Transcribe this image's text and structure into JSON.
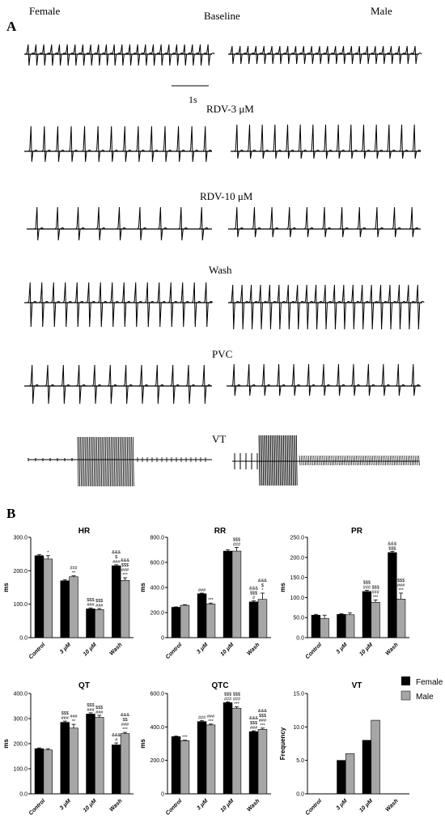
{
  "panel_a": {
    "label": "A",
    "female_label": "Female",
    "male_label": "Male",
    "scale_label": "1s",
    "rows": [
      {
        "label": "Baseline"
      },
      {
        "label": "RDV-3 μM"
      },
      {
        "label": "RDV-10 μM"
      },
      {
        "label": "Wash"
      },
      {
        "label": "PVC"
      },
      {
        "label": "VT"
      }
    ]
  },
  "panel_b": {
    "label": "B",
    "legend": [
      "Female",
      "Male"
    ],
    "colors": {
      "female": "#000000",
      "male": "#a6a6a6"
    }
  },
  "chart_data": [
    {
      "type": "bar",
      "title": "HR",
      "ylabel": "ms",
      "ylim": [
        0,
        300
      ],
      "yticks": [
        "0.0",
        "100.0",
        "200.0",
        "300.0"
      ],
      "tick_values": [
        0,
        100,
        200,
        300
      ],
      "categories": [
        "Control",
        "3 μM",
        "10 μM",
        "Wash"
      ],
      "series": [
        {
          "name": "Female",
          "values": [
            245,
            170,
            86,
            215
          ],
          "errors": [
            3,
            3,
            3,
            3
          ]
        },
        {
          "name": "Male",
          "values": [
            235,
            182,
            84,
            171
          ],
          "errors": [
            10,
            3,
            3,
            8
          ]
        }
      ],
      "annotations": [
        {
          "cat": 0,
          "series": 1,
          "lines": [
            "*"
          ]
        },
        {
          "cat": 1,
          "series": 1,
          "lines": [
            "###",
            "**"
          ]
        },
        {
          "cat": 2,
          "series": 0,
          "lines": [
            "$$$",
            "###"
          ]
        },
        {
          "cat": 2,
          "series": 1,
          "lines": [
            "$$$",
            "###"
          ]
        },
        {
          "cat": 3,
          "series": 0,
          "lines": [
            "&&&",
            "$",
            "###"
          ]
        },
        {
          "cat": 3,
          "series": 1,
          "lines": [
            "&&&",
            "$$$",
            "###",
            "***"
          ]
        }
      ]
    },
    {
      "type": "bar",
      "title": "RR",
      "ylabel": "ms",
      "ylim": [
        0,
        800
      ],
      "yticks": [
        "0",
        "200.0",
        "400.0",
        "600.0",
        "800.0"
      ],
      "tick_values": [
        0,
        200,
        400,
        600,
        800
      ],
      "categories": [
        "Control",
        "3 μM",
        "10 μM",
        "Wash"
      ],
      "series": [
        {
          "name": "Female",
          "values": [
            242,
            350,
            690,
            285
          ],
          "errors": [
            3,
            5,
            10,
            8
          ]
        },
        {
          "name": "Male",
          "values": [
            258,
            268,
            690,
            305
          ],
          "errors": [
            5,
            8,
            30,
            50
          ]
        }
      ],
      "annotations": [
        {
          "cat": 1,
          "series": 0,
          "lines": [
            "###"
          ]
        },
        {
          "cat": 1,
          "series": 1,
          "lines": [
            "***"
          ]
        },
        {
          "cat": 2,
          "series": 1,
          "lines": [
            "$$$",
            "###"
          ]
        },
        {
          "cat": 3,
          "series": 0,
          "lines": [
            "&&&",
            "$$$",
            "#"
          ]
        },
        {
          "cat": 3,
          "series": 1,
          "lines": [
            "&&&",
            "$",
            "*"
          ]
        }
      ]
    },
    {
      "type": "bar",
      "title": "PR",
      "ylabel": "ms",
      "ylim": [
        0,
        250
      ],
      "yticks": [
        "0.0",
        "50.0",
        "100.0",
        "150.0",
        "200.0",
        "250.0"
      ],
      "tick_values": [
        0,
        50,
        100,
        150,
        200,
        250
      ],
      "categories": [
        "Control",
        "3 μM",
        "10 μM",
        "Wash"
      ],
      "series": [
        {
          "name": "Female",
          "values": [
            56,
            58,
            115,
            212
          ],
          "errors": [
            2,
            2,
            3,
            3
          ]
        },
        {
          "name": "Male",
          "values": [
            48,
            57,
            88,
            96
          ],
          "errors": [
            8,
            5,
            6,
            15
          ]
        }
      ],
      "annotations": [
        {
          "cat": 2,
          "series": 0,
          "lines": [
            "$$$",
            "###"
          ]
        },
        {
          "cat": 2,
          "series": 1,
          "lines": [
            "$$$",
            "###",
            "***"
          ]
        },
        {
          "cat": 3,
          "series": 0,
          "lines": [
            "&&&",
            "$$$"
          ]
        },
        {
          "cat": 3,
          "series": 1,
          "lines": [
            "$$$",
            "###",
            "***"
          ]
        }
      ]
    },
    {
      "type": "bar",
      "title": "QT",
      "ylabel": "ms",
      "ylim": [
        0,
        400
      ],
      "yticks": [
        "0.0",
        "100.0",
        "200.0",
        "300.0",
        "400.0"
      ],
      "tick_values": [
        0,
        100,
        200,
        300,
        400
      ],
      "categories": [
        "Control",
        "3 μM",
        "10 μM",
        "Wash"
      ],
      "series": [
        {
          "name": "Female",
          "values": [
            180,
            285,
            318,
            195
          ],
          "errors": [
            3,
            5,
            5,
            8
          ]
        },
        {
          "name": "Male",
          "values": [
            175,
            262,
            305,
            240
          ],
          "errors": [
            5,
            15,
            8,
            5
          ]
        }
      ],
      "annotations": [
        {
          "cat": 1,
          "series": 0,
          "lines": [
            "$$$",
            "###"
          ]
        },
        {
          "cat": 1,
          "series": 1,
          "lines": [
            "###",
            "**"
          ]
        },
        {
          "cat": 2,
          "series": 0,
          "lines": [
            "$$$",
            "###"
          ]
        },
        {
          "cat": 2,
          "series": 1,
          "lines": [
            "$$$",
            "###"
          ]
        },
        {
          "cat": 3,
          "series": 0,
          "lines": [
            "&&&",
            "#"
          ]
        },
        {
          "cat": 3,
          "series": 1,
          "lines": [
            "&&&",
            "$$",
            "###",
            "***"
          ]
        }
      ]
    },
    {
      "type": "bar",
      "title": "QTC",
      "ylabel": "ms",
      "ylim": [
        0,
        600
      ],
      "yticks": [
        "0",
        "200.0",
        "400.0",
        "600.0"
      ],
      "tick_values": [
        0,
        200,
        400,
        600
      ],
      "categories": [
        "Control",
        "3 μM",
        "10 μM",
        "Wash"
      ],
      "series": [
        {
          "name": "Female",
          "values": [
            342,
            432,
            545,
            372
          ],
          "errors": [
            3,
            5,
            5,
            5
          ]
        },
        {
          "name": "Male",
          "values": [
            318,
            412,
            512,
            385
          ],
          "errors": [
            3,
            5,
            8,
            8
          ]
        }
      ],
      "annotations": [
        {
          "cat": 0,
          "series": 1,
          "lines": [
            "***"
          ]
        },
        {
          "cat": 1,
          "series": 0,
          "lines": [
            "###"
          ]
        },
        {
          "cat": 1,
          "series": 1,
          "lines": [
            "###",
            "***"
          ]
        },
        {
          "cat": 2,
          "series": 0,
          "lines": [
            "$$$",
            "###"
          ]
        },
        {
          "cat": 2,
          "series": 1,
          "lines": [
            "$$$",
            "###",
            "***"
          ]
        },
        {
          "cat": 3,
          "series": 0,
          "lines": [
            "&&&",
            "$$$",
            "###"
          ]
        },
        {
          "cat": 3,
          "series": 1,
          "lines": [
            "&&&",
            "$$$",
            "###",
            "***"
          ]
        }
      ]
    },
    {
      "type": "bar",
      "title": "VT",
      "ylabel": "Frequency",
      "ylim": [
        0,
        15
      ],
      "yticks": [
        "0.0",
        "5.0",
        "10.0",
        "15.0"
      ],
      "tick_values": [
        0,
        5,
        10,
        15
      ],
      "categories": [
        "Control",
        "3 μM",
        "10 μM",
        "Wash"
      ],
      "series": [
        {
          "name": "Female",
          "values": [
            0,
            5,
            8,
            0
          ]
        },
        {
          "name": "Male",
          "values": [
            0,
            6,
            11,
            0
          ]
        }
      ],
      "annotations": []
    }
  ]
}
